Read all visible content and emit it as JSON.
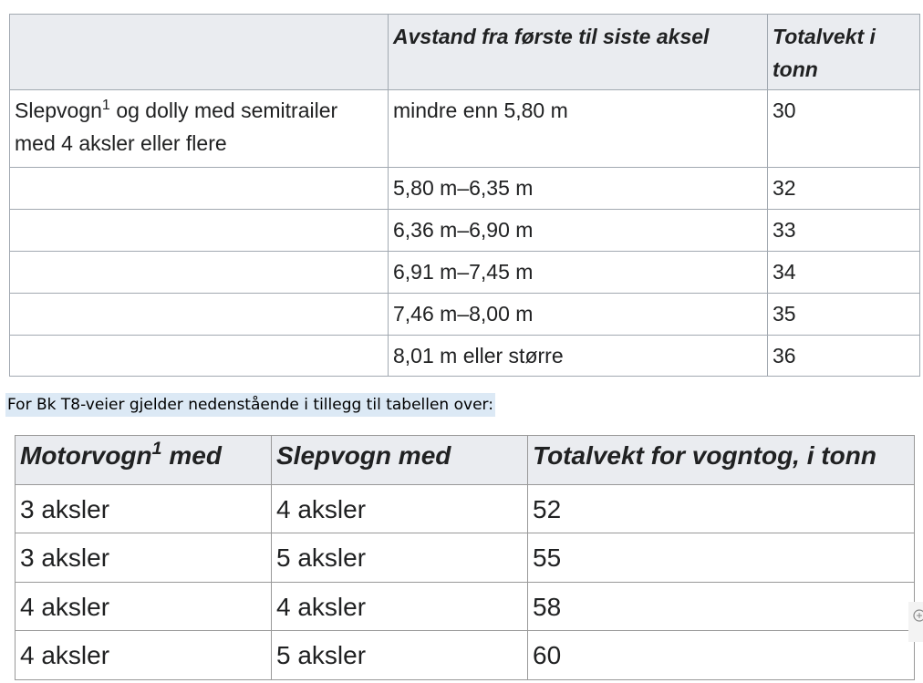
{
  "table1": {
    "header": [
      "Avstand fra første til siste aksel",
      "Totalvekt i tonn"
    ],
    "first_row": {
      "vehicle": [
        "Slepvogn",
        "1",
        "og dolly med semitrailer med 4 aksler eller flere"
      ],
      "distance": "mindre enn 5,80 m",
      "weight": 30
    },
    "rows": [
      [
        "5,80 m–6,35 m",
        32
      ],
      [
        "6,36 m–6,90 m",
        33
      ],
      [
        "6,91 m–7,45 m",
        34
      ],
      [
        "7,46 m–8,00 m",
        35
      ],
      [
        "8,01 m eller større",
        36
      ]
    ]
  },
  "note": "For Bk T8-veier gjelder nedenstående i tillegg til tabellen over:",
  "table2": {
    "header": [
      [
        "Motorvogn",
        "1",
        "med"
      ],
      "Slepvogn med",
      "Totalvekt for vogntog, i tonn"
    ],
    "rows": [
      [
        "3 aksler",
        "4 aksler",
        52
      ],
      [
        "3 aksler",
        "5 aksler",
        55
      ],
      [
        "4 aksler",
        "4 aksler",
        58
      ],
      [
        "4 aksler",
        "5 aksler",
        60
      ]
    ]
  }
}
